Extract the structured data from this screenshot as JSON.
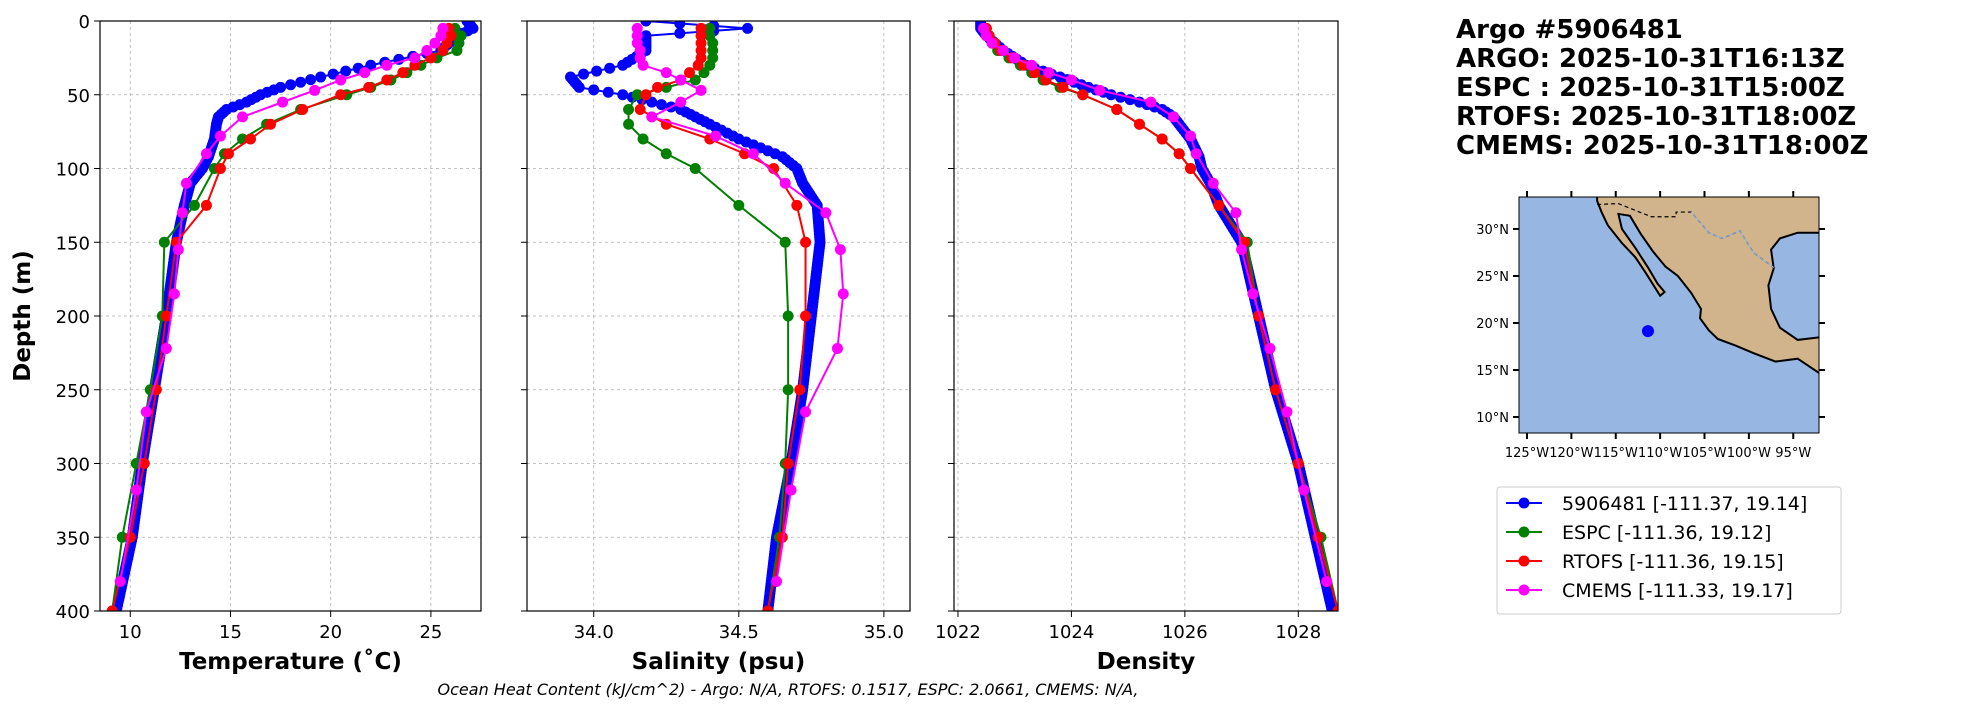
{
  "title_block": {
    "line1": "Argo #5906481",
    "line2": "ARGO: 2025-10-31T16:13Z",
    "line3": "ESPC : 2025-10-31T15:00Z",
    "line4": "RTOFS: 2025-10-31T18:00Z",
    "line5": "CMEMS: 2025-10-31T18:00Z"
  },
  "footer": "Ocean Heat Content (kJ/cm^2) - Argo: N/A,  RTOFS: 0.1517,  ESPC: 2.0661,  CMEMS: N/A,",
  "colors": {
    "argo": "#0000ff",
    "espc": "#008000",
    "rtofs": "#ff0000",
    "cmems": "#ff00ff",
    "ocean": "#97b6e1",
    "land": "#d2b48c"
  },
  "legend": [
    {
      "label": "5906481 [-111.37, 19.14]",
      "color": "#0000ff"
    },
    {
      "label": "ESPC [-111.36, 19.12]",
      "color": "#008000"
    },
    {
      "label": "RTOFS [-111.36, 19.15]",
      "color": "#ff0000"
    },
    {
      "label": "CMEMS [-111.33, 19.17]",
      "color": "#ff00ff"
    }
  ],
  "depths": {
    "argo": [
      0,
      5,
      10,
      20,
      30,
      38,
      45,
      50,
      55,
      60,
      65,
      70,
      80,
      92,
      100,
      110,
      125,
      150,
      200,
      250,
      300,
      350,
      400
    ],
    "espc": [
      5,
      10,
      15,
      20,
      25,
      30,
      35,
      40,
      45,
      50,
      60,
      70,
      80,
      90,
      100,
      125,
      150,
      200,
      250,
      300,
      350,
      400
    ],
    "rtofs": [
      5,
      10,
      15,
      20,
      25,
      30,
      35,
      40,
      45,
      50,
      60,
      70,
      80,
      90,
      100,
      125,
      150,
      200,
      250,
      300,
      350,
      400
    ],
    "cmems": [
      5,
      10,
      15,
      20,
      25,
      30,
      35,
      40,
      47,
      55,
      65,
      78,
      90,
      110,
      130,
      155,
      185,
      222,
      265,
      318,
      380
    ]
  },
  "chart_data": [
    {
      "type": "line",
      "title": "",
      "xlabel": "Temperature (˚C)",
      "ylabel": "Depth (m)",
      "xlim": [
        8.49,
        27.5
      ],
      "ylim": [
        400,
        0
      ],
      "xticks": [
        10,
        15,
        20,
        25
      ],
      "xtick_labels": [
        "10",
        "15",
        "20",
        "25"
      ],
      "yticks": [
        0,
        50,
        100,
        150,
        200,
        250,
        300,
        350,
        400
      ],
      "ytick_labels": [
        "0",
        "50",
        "100",
        "150",
        "200",
        "250",
        "300",
        "350",
        "400"
      ],
      "grid": true,
      "series": [
        {
          "name": "5906481",
          "key": "argo",
          "values": [
            26.8,
            27.1,
            26.3,
            25.5,
            22,
            19.5,
            17.5,
            16.5,
            15.8,
            14.8,
            14.4,
            14.3,
            14.2,
            13.9,
            13.6,
            13,
            12.7,
            12.3,
            11.8,
            11.2,
            10.6,
            10.1,
            9.3
          ]
        },
        {
          "name": "ESPC",
          "key": "espc",
          "values": [
            26.2,
            26.5,
            26.4,
            26.3,
            25.3,
            24.5,
            23.8,
            23,
            22,
            20.8,
            18.5,
            16.8,
            15.6,
            14.7,
            14.2,
            13.2,
            11.7,
            11.6,
            11.0,
            10.3,
            9.6,
            9.1
          ]
        },
        {
          "name": "RTOFS",
          "key": "rtofs",
          "values": [
            25.9,
            26.0,
            25.8,
            25.6,
            25,
            24.2,
            23.6,
            22.8,
            21.9,
            20.5,
            18.6,
            17,
            16,
            14.9,
            14.5,
            13.8,
            12.3,
            11.8,
            11.3,
            10.7,
            10.0,
            9.1
          ]
        },
        {
          "name": "CMEMS",
          "key": "cmems",
          "values": [
            25.6,
            25.5,
            25.2,
            24.8,
            24.2,
            22.8,
            21.7,
            20.5,
            19.2,
            17.6,
            15.6,
            14.5,
            13.8,
            12.8,
            12.6,
            12.4,
            12.2,
            11.8,
            10.8,
            10.3,
            9.5
          ]
        }
      ]
    },
    {
      "type": "line",
      "title": "",
      "xlabel": "Salinity (psu)",
      "ylabel": "",
      "xlim": [
        33.77,
        35.09
      ],
      "ylim": [
        400,
        0
      ],
      "xticks": [
        34.0,
        34.5,
        35.0
      ],
      "xtick_labels": [
        "34.0",
        "34.5",
        "35.0"
      ],
      "yticks": [
        0,
        50,
        100,
        150,
        200,
        250,
        300,
        350,
        400
      ],
      "ytick_labels": [],
      "grid": true,
      "series": [
        {
          "name": "5906481",
          "key": "argo",
          "values": [
            34.18,
            34.53,
            34.18,
            34.18,
            34.1,
            33.92,
            33.95,
            34.1,
            34.2,
            34.3,
            34.35,
            34.4,
            34.5,
            34.65,
            34.7,
            34.72,
            34.77,
            34.78,
            34.75,
            34.72,
            34.68,
            34.63,
            34.6
          ]
        },
        {
          "name": "ESPC",
          "key": "espc",
          "values": [
            34.4,
            34.4,
            34.41,
            34.41,
            34.41,
            34.4,
            34.38,
            34.35,
            34.25,
            34.15,
            34.12,
            34.12,
            34.17,
            34.25,
            34.35,
            34.5,
            34.66,
            34.67,
            34.67,
            34.66,
            34.64,
            34.6
          ]
        },
        {
          "name": "RTOFS",
          "key": "rtofs",
          "values": [
            34.37,
            34.37,
            34.37,
            34.37,
            34.37,
            34.36,
            34.33,
            34.3,
            34.22,
            34.18,
            34.16,
            34.25,
            34.4,
            34.52,
            34.62,
            34.7,
            34.73,
            34.73,
            34.71,
            34.67,
            34.65,
            34.6
          ]
        },
        {
          "name": "CMEMS",
          "key": "cmems",
          "values": [
            34.15,
            34.15,
            34.15,
            34.16,
            34.16,
            34.17,
            34.25,
            34.3,
            34.37,
            34.3,
            34.2,
            34.42,
            34.55,
            34.66,
            34.8,
            34.85,
            34.86,
            34.84,
            34.73,
            34.68,
            34.63
          ]
        }
      ]
    },
    {
      "type": "line",
      "title": "",
      "xlabel": "Density",
      "ylabel": "",
      "xlim": [
        1021.93,
        1028.7
      ],
      "ylim": [
        400,
        0
      ],
      "xticks": [
        1022,
        1024,
        1026,
        1028
      ],
      "xtick_labels": [
        "1022",
        "1024",
        "1026",
        "1028"
      ],
      "yticks": [
        0,
        50,
        100,
        150,
        200,
        250,
        300,
        350,
        400
      ],
      "ytick_labels": [],
      "grid": true,
      "series": [
        {
          "name": "5906481",
          "key": "argo",
          "values": [
            1022.4,
            1022.4,
            1022.5,
            1022.8,
            1023.2,
            1023.8,
            1024.3,
            1024.7,
            1025.2,
            1025.6,
            1025.8,
            1025.9,
            1026.1,
            1026.25,
            1026.3,
            1026.45,
            1026.6,
            1027.0,
            1027.3,
            1027.6,
            1028.0,
            1028.3,
            1028.6
          ]
        },
        {
          "name": "ESPC",
          "key": "espc",
          "values": [
            1022.5,
            1022.55,
            1022.6,
            1022.7,
            1022.9,
            1023.1,
            1023.3,
            1023.5,
            1023.8,
            1024.2,
            1024.8,
            1025.2,
            1025.6,
            1025.9,
            1026.1,
            1026.6,
            1027.1,
            1027.3,
            1027.6,
            1028.0,
            1028.4,
            1028.7
          ]
        },
        {
          "name": "RTOFS",
          "key": "rtofs",
          "values": [
            1022.5,
            1022.55,
            1022.65,
            1022.75,
            1022.95,
            1023.15,
            1023.35,
            1023.55,
            1023.85,
            1024.2,
            1024.8,
            1025.2,
            1025.6,
            1025.9,
            1026.1,
            1026.6,
            1027.05,
            1027.3,
            1027.6,
            1028.0,
            1028.35,
            1028.7
          ]
        },
        {
          "name": "CMEMS",
          "key": "cmems",
          "values": [
            1022.45,
            1022.5,
            1022.6,
            1022.8,
            1023.0,
            1023.3,
            1023.6,
            1024.0,
            1024.5,
            1025.4,
            1025.8,
            1026.1,
            1026.2,
            1026.5,
            1026.9,
            1027.0,
            1027.2,
            1027.5,
            1027.8,
            1028.1,
            1028.5
          ]
        }
      ]
    }
  ],
  "map": {
    "lon_range": [
      -125.9,
      -92.1
    ],
    "lat_range": [
      8.3,
      33.4
    ],
    "float_position": {
      "lon": -111.37,
      "lat": 19.14
    },
    "lon_ticks": [
      -125,
      -120,
      -115,
      -110,
      -105,
      -100,
      -95
    ],
    "lon_tick_labels": [
      "125°W",
      "120°W",
      "115°W",
      "110°W",
      "105°W",
      "100°W",
      "95°W"
    ],
    "lat_ticks": [
      10,
      15,
      20,
      25,
      30
    ],
    "lat_tick_labels": [
      "10°N",
      "15°N",
      "20°N",
      "25°N",
      "30°N"
    ]
  }
}
